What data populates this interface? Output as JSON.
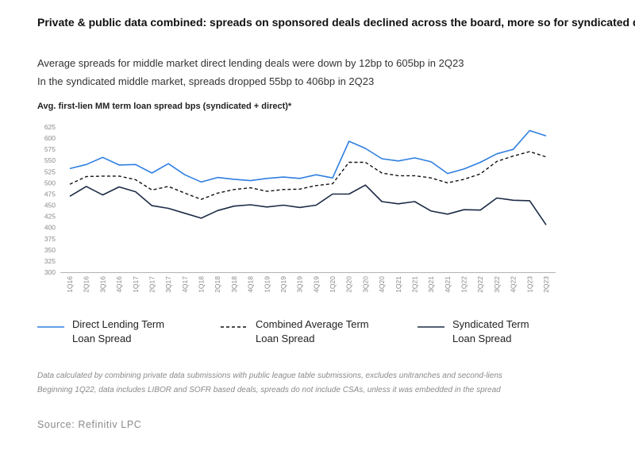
{
  "title": "Private & public data combined: spreads on sponsored deals declined across the board, more so for syndicated deals",
  "subtitles": [
    "Average spreads for middle market direct lending deals were down by 12bp to 605bp in 2Q23",
    "In the syndicated middle market, spreads dropped 55bp to 406bp in 2Q23"
  ],
  "chart_heading": "Avg. first-lien MM term loan spread bps (syndicated + direct)*",
  "chart_data": {
    "type": "line",
    "categories": [
      "1Q16",
      "2Q16",
      "3Q16",
      "4Q16",
      "1Q17",
      "2Q17",
      "3Q17",
      "4Q17",
      "1Q18",
      "2Q18",
      "3Q18",
      "4Q18",
      "1Q19",
      "2Q19",
      "3Q19",
      "4Q19",
      "1Q20",
      "2Q20",
      "3Q20",
      "4Q20",
      "1Q21",
      "2Q21",
      "3Q21",
      "4Q21",
      "1Q22",
      "2Q22",
      "3Q22",
      "4Q22",
      "1Q23",
      "2Q23"
    ],
    "ylim": [
      300,
      625
    ],
    "yticks": [
      300,
      325,
      350,
      375,
      400,
      425,
      450,
      475,
      500,
      525,
      550,
      575,
      600,
      625
    ],
    "grid": false,
    "series": [
      {
        "name": "Direct Lending Term Loan Spread",
        "color": "#2f7fe0",
        "style": "solid",
        "values": [
          532,
          541,
          557,
          540,
          541,
          522,
          543,
          518,
          502,
          512,
          508,
          505,
          510,
          513,
          510,
          518,
          511,
          593,
          577,
          554,
          549,
          556,
          547,
          521,
          531,
          546,
          565,
          575,
          617,
          605
        ]
      },
      {
        "name": "Combined Average Term Loan Spread",
        "color": "#111111",
        "style": "dashed",
        "values": [
          497,
          514,
          515,
          515,
          507,
          484,
          492,
          477,
          463,
          477,
          485,
          489,
          481,
          485,
          486,
          494,
          498,
          546,
          546,
          522,
          516,
          516,
          511,
          500,
          508,
          520,
          548,
          560,
          570,
          558
        ]
      },
      {
        "name": "Syndicated Term Loan Spread",
        "color": "#1c2b45",
        "style": "solid",
        "values": [
          470,
          492,
          473,
          491,
          480,
          449,
          443,
          432,
          421,
          438,
          448,
          451,
          446,
          450,
          445,
          450,
          475,
          475,
          495,
          458,
          453,
          458,
          437,
          430,
          440,
          439,
          466,
          461,
          460,
          406
        ]
      }
    ]
  },
  "legend": [
    {
      "label_lines": [
        "Direct Lending Term",
        "Loan Spread"
      ]
    },
    {
      "label_lines": [
        "Combined Average Term",
        "Loan Spread"
      ]
    },
    {
      "label_lines": [
        "Syndicated Term",
        "Loan Spread"
      ]
    }
  ],
  "notes": [
    "Data calculated by combining private data submissions with public league table submissions, excludes unitranches and second-liens",
    "Beginning 1Q22, data includes LIBOR and SOFR based deals, spreads do not include CSAs, unless it was embedded in the spread"
  ],
  "source": "Source: Refinitiv LPC"
}
